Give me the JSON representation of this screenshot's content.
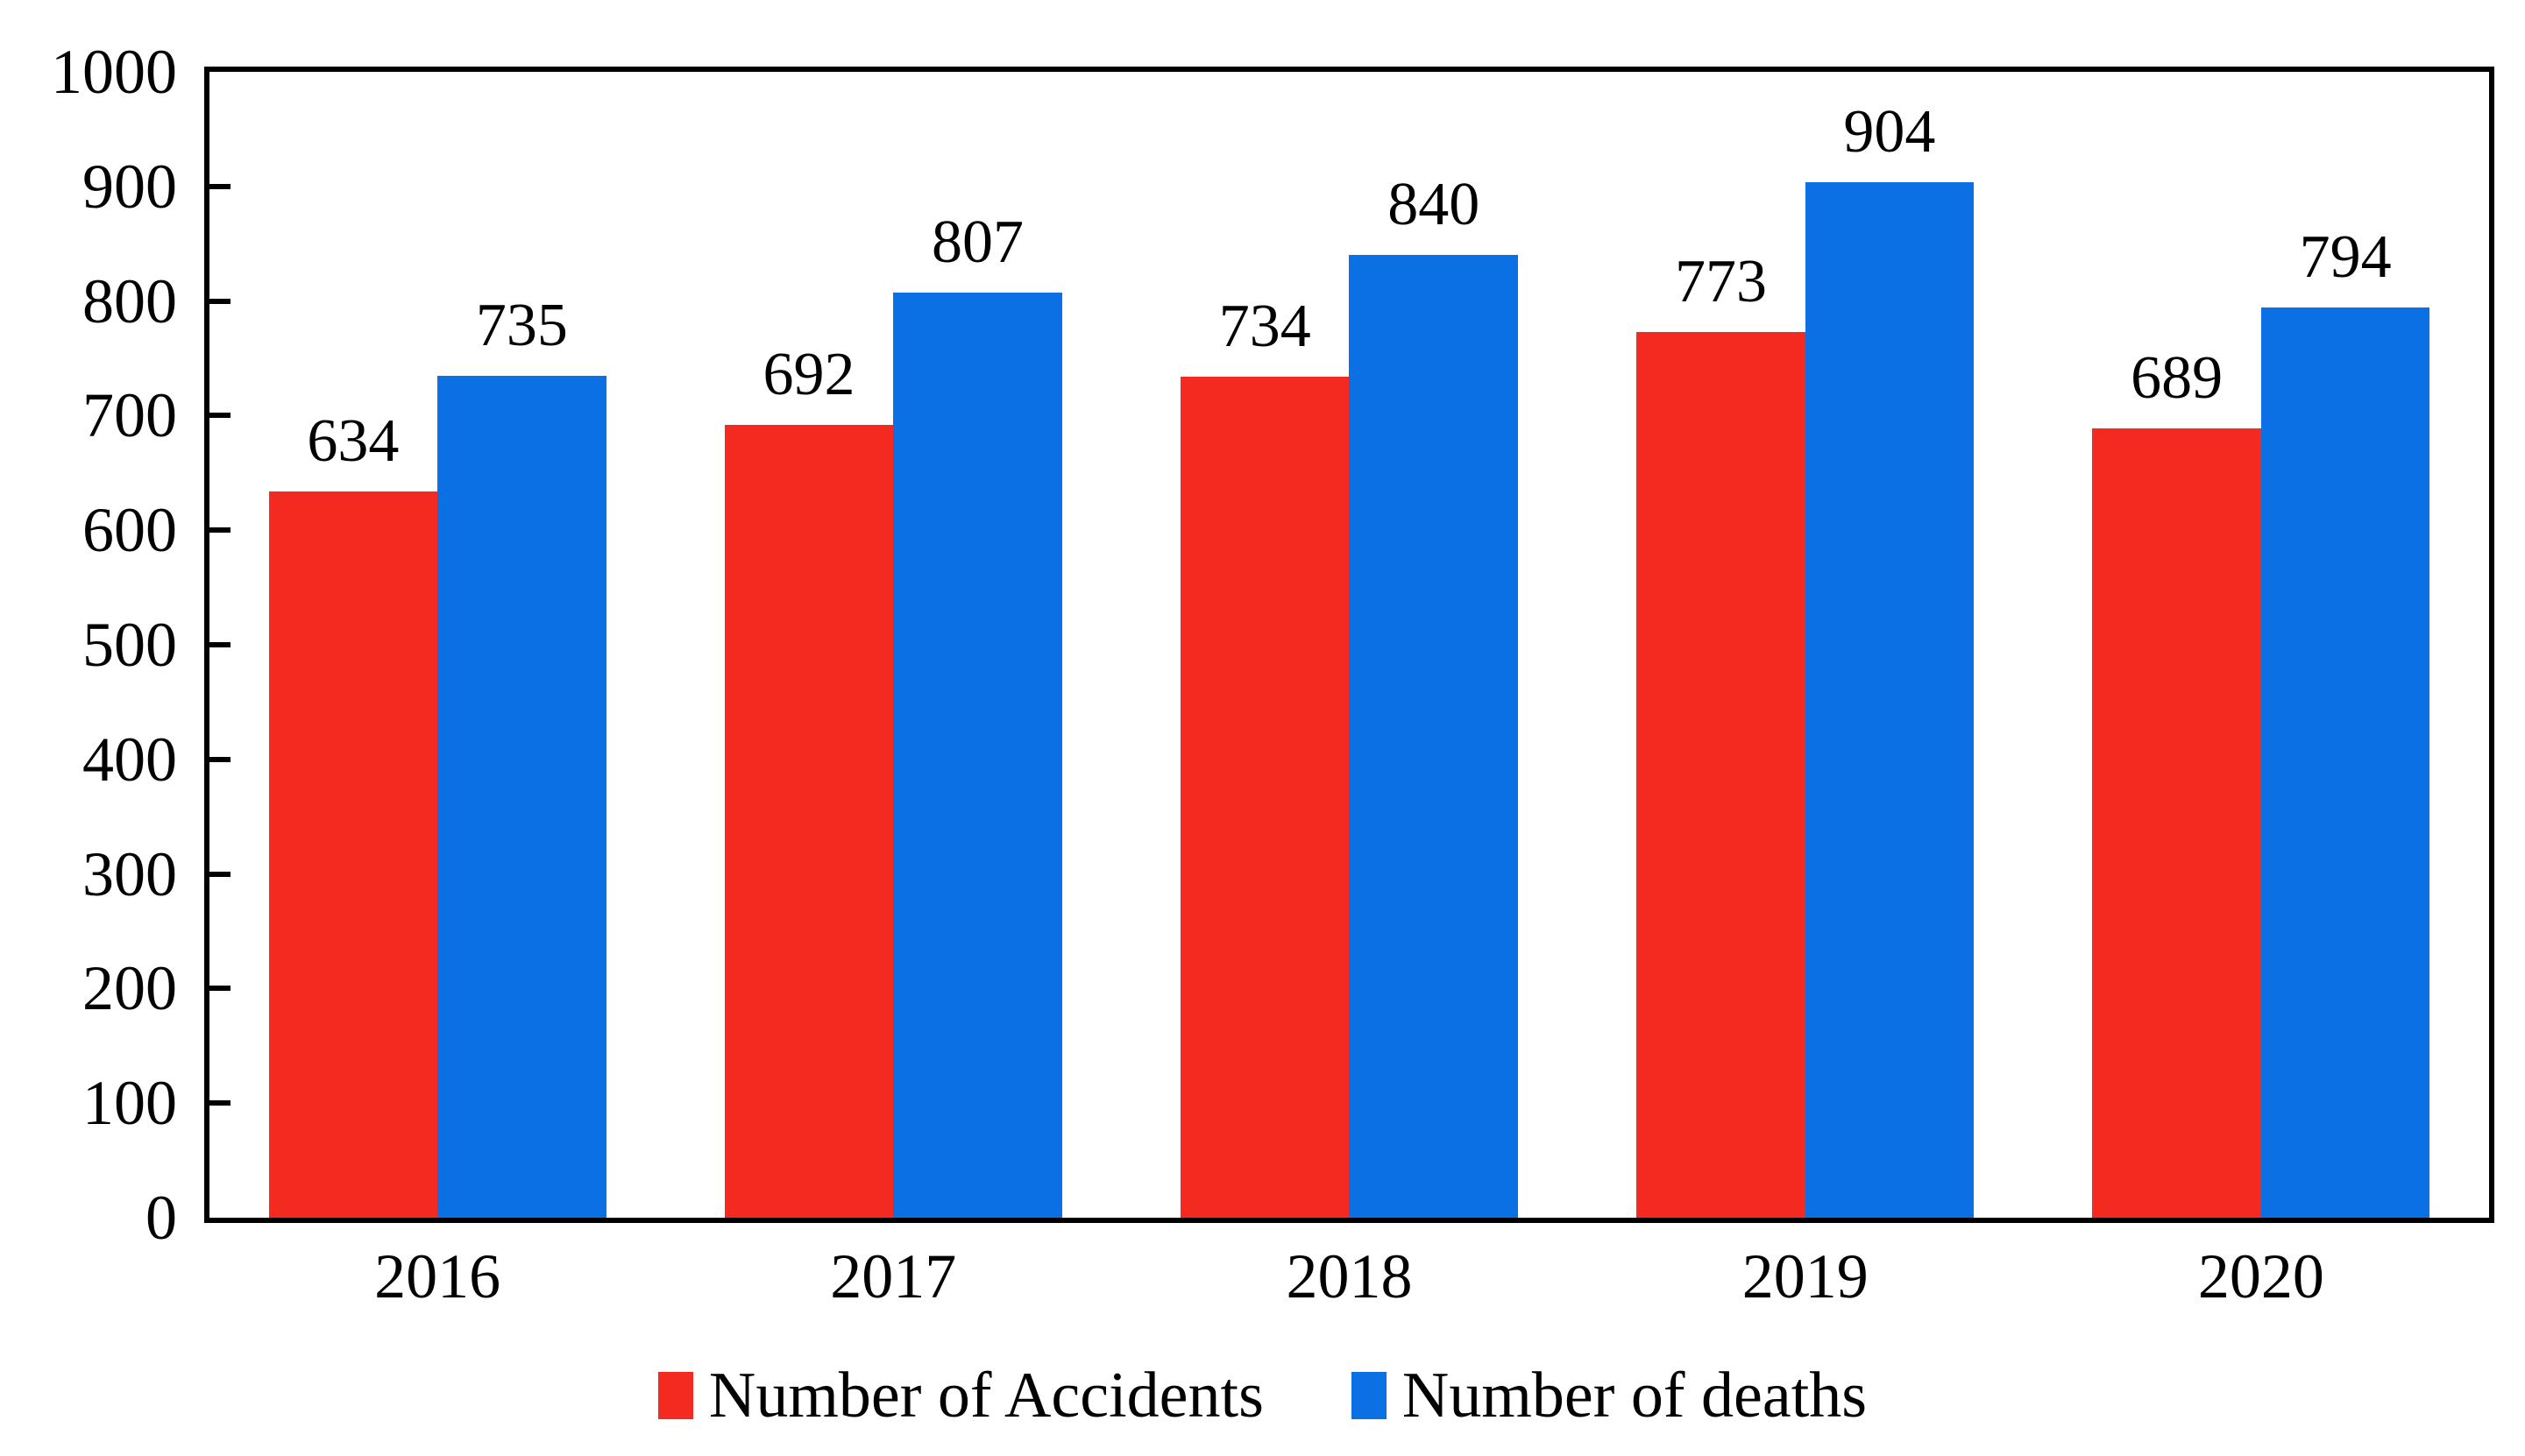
{
  "chart_data": {
    "type": "bar",
    "categories": [
      "2016",
      "2017",
      "2018",
      "2019",
      "2020"
    ],
    "series": [
      {
        "name": "Number of Accidents",
        "color": "#f42a20",
        "values": [
          634,
          692,
          734,
          773,
          689
        ]
      },
      {
        "name": "Number of deaths",
        "color": "#0b70e4",
        "values": [
          735,
          807,
          840,
          904,
          794
        ]
      }
    ],
    "title": "",
    "xlabel": "",
    "ylabel": "",
    "ylim": [
      0,
      1000
    ],
    "ytick_step": 100,
    "ytick_labels": [
      "0",
      "100",
      "200",
      "300",
      "400",
      "500",
      "600",
      "700",
      "800",
      "900",
      "1000"
    ],
    "grid": false,
    "bar_value_labels": true,
    "legend_position": "bottom"
  },
  "colors": {
    "axis": "#000000",
    "text": "#000000",
    "background": "#ffffff"
  }
}
